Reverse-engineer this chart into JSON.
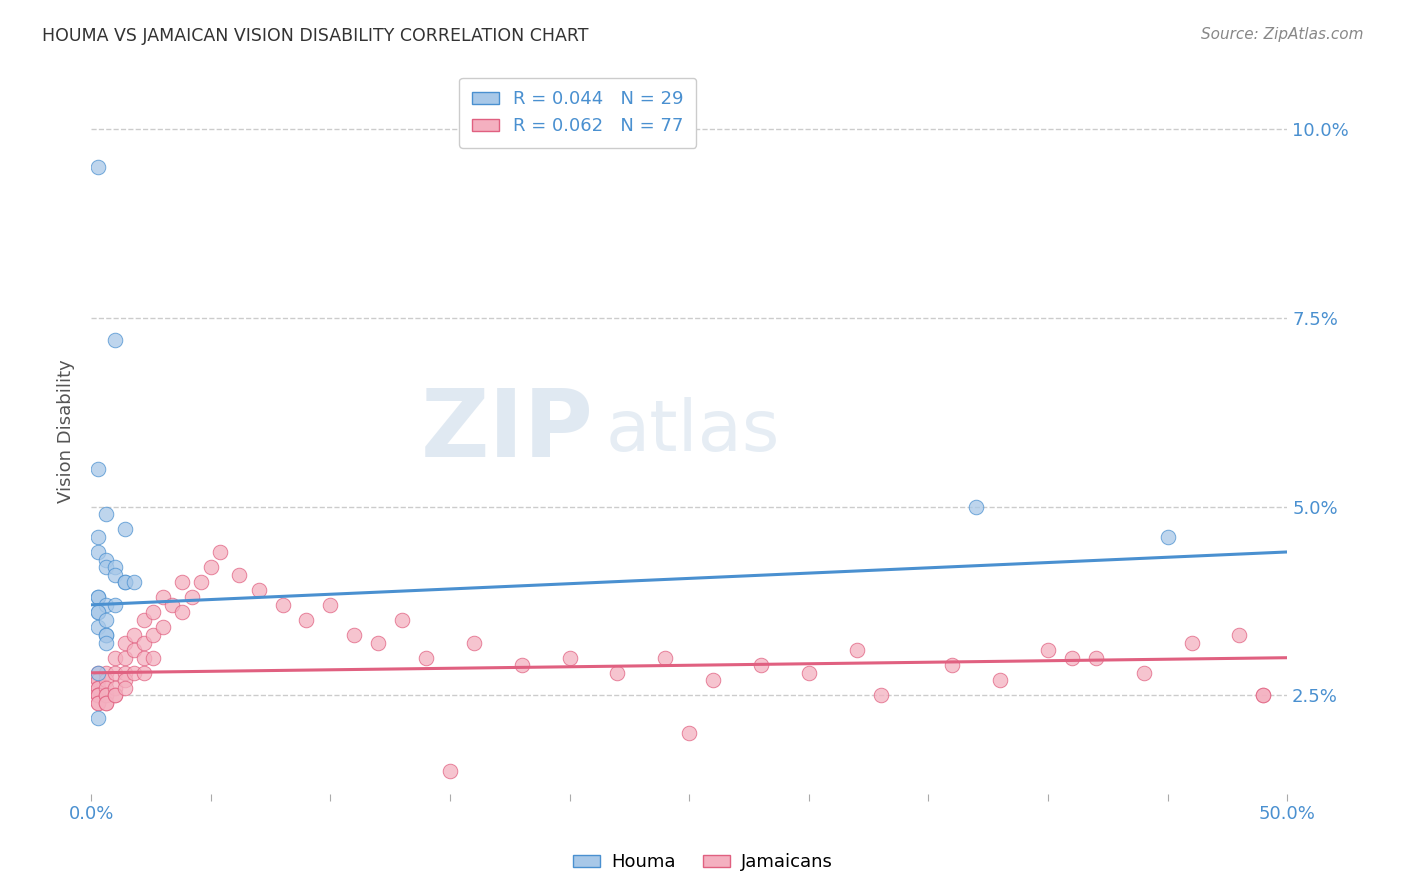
{
  "title": "HOUMA VS JAMAICAN VISION DISABILITY CORRELATION CHART",
  "source": "Source: ZipAtlas.com",
  "ylabel": "Vision Disability",
  "yticks": [
    0.025,
    0.05,
    0.075,
    0.1
  ],
  "ytick_labels": [
    "2.5%",
    "5.0%",
    "7.5%",
    "10.0%"
  ],
  "xlim": [
    0.0,
    0.5
  ],
  "ylim": [
    0.012,
    0.108
  ],
  "houma_R": 0.044,
  "houma_N": 29,
  "jamaican_R": 0.062,
  "jamaican_N": 77,
  "houma_color": "#a8c8e8",
  "jamaican_color": "#f4b0c0",
  "houma_line_color": "#4a90d0",
  "jamaican_line_color": "#e06080",
  "background_color": "#ffffff",
  "grid_color": "#cccccc",
  "houma_line_y0": 0.037,
  "houma_line_y1": 0.044,
  "jamaican_line_y0": 0.028,
  "jamaican_line_y1": 0.03,
  "houma_x": [
    0.003,
    0.01,
    0.003,
    0.006,
    0.014,
    0.003,
    0.003,
    0.006,
    0.006,
    0.01,
    0.01,
    0.014,
    0.014,
    0.018,
    0.003,
    0.003,
    0.003,
    0.006,
    0.006,
    0.006,
    0.003,
    0.006,
    0.01,
    0.003,
    0.006,
    0.37,
    0.45,
    0.003,
    0.003
  ],
  "houma_y": [
    0.095,
    0.072,
    0.055,
    0.049,
    0.047,
    0.046,
    0.044,
    0.043,
    0.042,
    0.042,
    0.041,
    0.04,
    0.04,
    0.04,
    0.038,
    0.036,
    0.034,
    0.033,
    0.033,
    0.032,
    0.038,
    0.037,
    0.037,
    0.036,
    0.035,
    0.05,
    0.046,
    0.028,
    0.022
  ],
  "jamaican_x": [
    0.003,
    0.003,
    0.003,
    0.003,
    0.003,
    0.003,
    0.003,
    0.003,
    0.003,
    0.003,
    0.006,
    0.006,
    0.006,
    0.006,
    0.006,
    0.006,
    0.006,
    0.01,
    0.01,
    0.01,
    0.01,
    0.01,
    0.014,
    0.014,
    0.014,
    0.014,
    0.014,
    0.018,
    0.018,
    0.018,
    0.022,
    0.022,
    0.022,
    0.022,
    0.026,
    0.026,
    0.026,
    0.03,
    0.03,
    0.034,
    0.038,
    0.038,
    0.042,
    0.046,
    0.05,
    0.054,
    0.062,
    0.07,
    0.08,
    0.09,
    0.1,
    0.11,
    0.12,
    0.13,
    0.14,
    0.16,
    0.18,
    0.2,
    0.22,
    0.24,
    0.26,
    0.28,
    0.3,
    0.32,
    0.36,
    0.38,
    0.4,
    0.42,
    0.44,
    0.46,
    0.48,
    0.49,
    0.15,
    0.25,
    0.33,
    0.41,
    0.49
  ],
  "jamaican_y": [
    0.028,
    0.027,
    0.027,
    0.026,
    0.026,
    0.025,
    0.025,
    0.025,
    0.024,
    0.024,
    0.028,
    0.027,
    0.026,
    0.025,
    0.025,
    0.024,
    0.024,
    0.03,
    0.028,
    0.026,
    0.025,
    0.025,
    0.032,
    0.03,
    0.028,
    0.027,
    0.026,
    0.033,
    0.031,
    0.028,
    0.035,
    0.032,
    0.03,
    0.028,
    0.036,
    0.033,
    0.03,
    0.038,
    0.034,
    0.037,
    0.04,
    0.036,
    0.038,
    0.04,
    0.042,
    0.044,
    0.041,
    0.039,
    0.037,
    0.035,
    0.037,
    0.033,
    0.032,
    0.035,
    0.03,
    0.032,
    0.029,
    0.03,
    0.028,
    0.03,
    0.027,
    0.029,
    0.028,
    0.031,
    0.029,
    0.027,
    0.031,
    0.03,
    0.028,
    0.032,
    0.033,
    0.025,
    0.015,
    0.02,
    0.025,
    0.03,
    0.025
  ]
}
